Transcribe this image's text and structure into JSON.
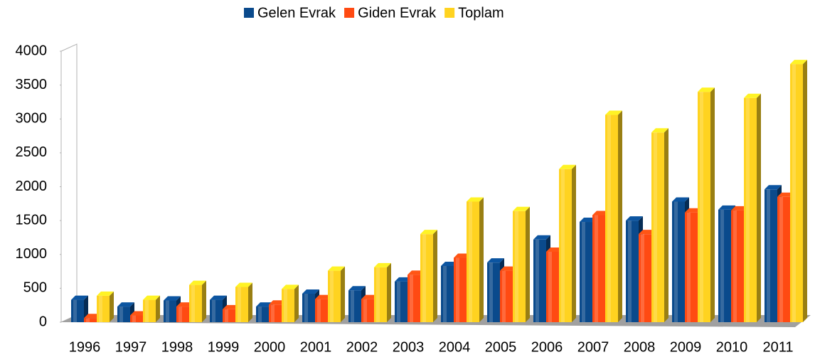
{
  "chart_data": {
    "type": "bar3d",
    "categories": [
      "1996",
      "1997",
      "1998",
      "1999",
      "2000",
      "2001",
      "2002",
      "2003",
      "2004",
      "2005",
      "2006",
      "2007",
      "2008",
      "2009",
      "2010",
      "2011"
    ],
    "series": [
      {
        "name": "Gelen Evrak",
        "color": "#0a4a8c",
        "values": [
          330,
          230,
          320,
          330,
          230,
          420,
          470,
          600,
          830,
          880,
          1220,
          1480,
          1500,
          1780,
          1660,
          1960
        ]
      },
      {
        "name": "Giden Evrak",
        "color": "#ff4a12",
        "values": [
          60,
          100,
          230,
          190,
          260,
          340,
          340,
          700,
          950,
          760,
          1040,
          1580,
          1300,
          1620,
          1650,
          1850
        ]
      },
      {
        "name": "Toplam",
        "color": "#ffd320",
        "values": [
          390,
          330,
          550,
          520,
          490,
          760,
          810,
          1300,
          1780,
          1640,
          2260,
          3060,
          2800,
          3400,
          3310,
          3810
        ]
      }
    ],
    "ylim": [
      0,
      4000
    ],
    "yticks": [
      0,
      500,
      1000,
      1500,
      2000,
      2500,
      3000,
      3500,
      4000
    ],
    "legend": "top"
  }
}
